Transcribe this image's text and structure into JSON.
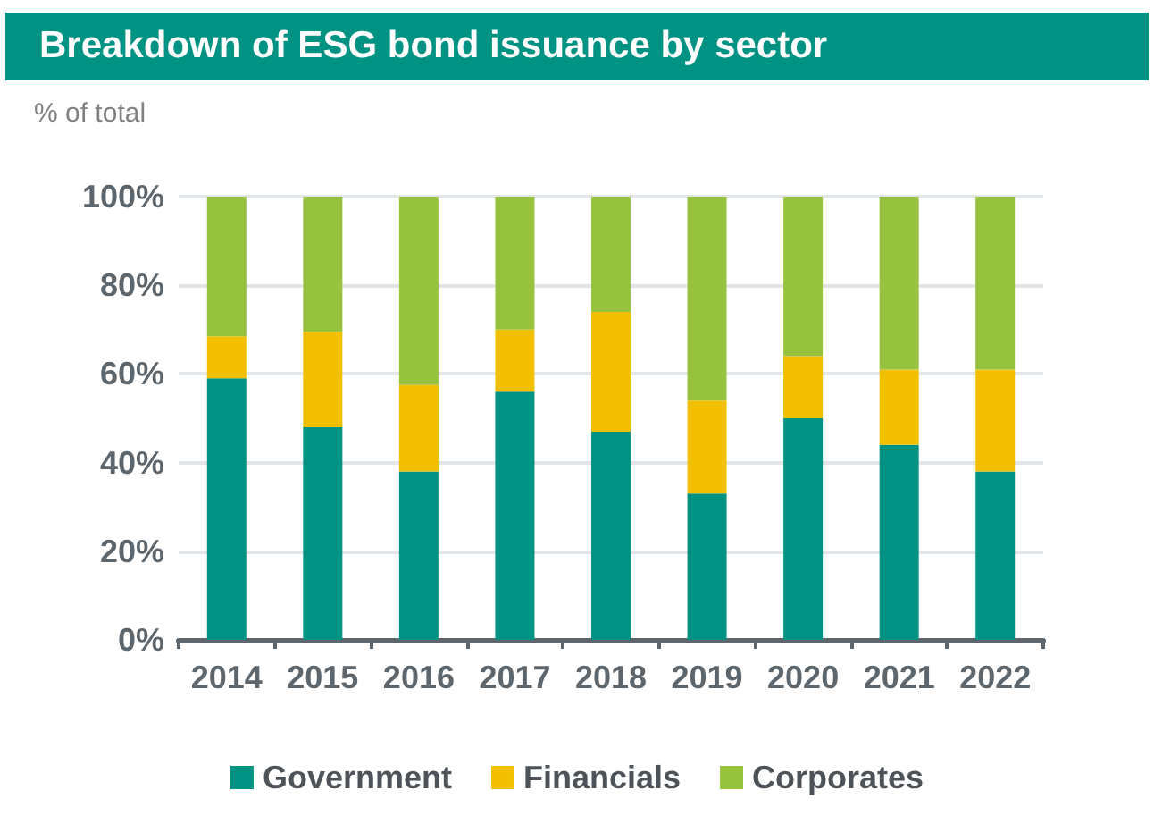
{
  "chart_data": {
    "type": "bar",
    "title": "Breakdown of ESG bond issuance by sector",
    "ylabel": "% of total",
    "categories": [
      "2014",
      "2015",
      "2016",
      "2017",
      "2018",
      "2019",
      "2020",
      "2021",
      "2022"
    ],
    "series": [
      {
        "name": "Government",
        "color": "#009282",
        "values": [
          59,
          48,
          38,
          56,
          47,
          33,
          50,
          44,
          38
        ]
      },
      {
        "name": "Financials",
        "color": "#f2c000",
        "values": [
          9.5,
          21.5,
          19.5,
          14,
          27,
          21,
          14,
          17,
          23
        ]
      },
      {
        "name": "Corporates",
        "color": "#97c23e",
        "values": [
          31.5,
          30.5,
          42.5,
          30,
          26,
          46,
          36,
          39,
          39
        ]
      }
    ],
    "stacked": true,
    "ylim": [
      0,
      100
    ],
    "yticks": [
      {
        "value": 0,
        "label": "0%"
      },
      {
        "value": 20,
        "label": "20%"
      },
      {
        "value": 40,
        "label": "40%"
      },
      {
        "value": 60,
        "label": "60%"
      },
      {
        "value": 80,
        "label": "80%"
      },
      {
        "value": 100,
        "label": "100%"
      }
    ],
    "grid": "y",
    "legend": "bottom"
  }
}
